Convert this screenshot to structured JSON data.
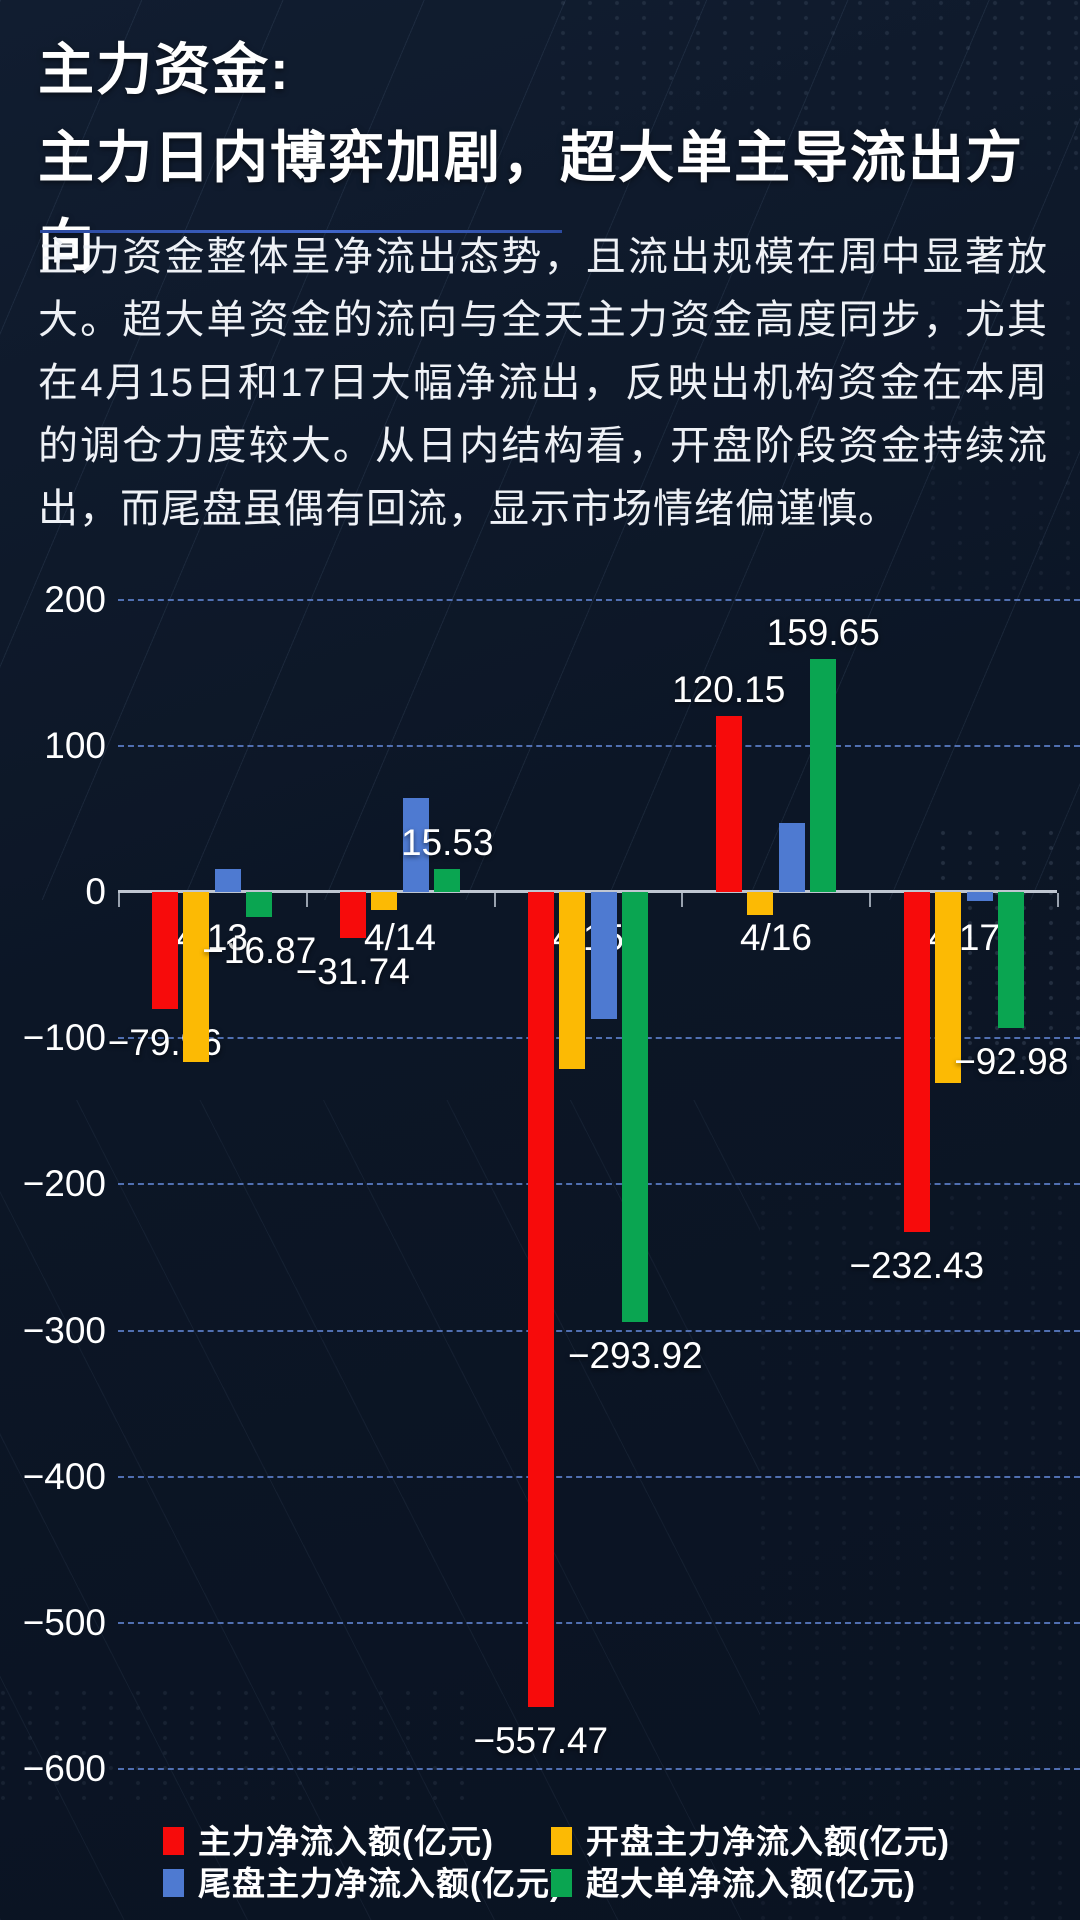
{
  "page": {
    "title": "主力资金:\n主力日内博弈加剧，超大单主导流出方向",
    "summary": "主力资金整体呈净流出态势，且流出规模在周中显著放大。超大单资金的流向与全天主力资金高度同步，尤其在4月15日和17日大幅净流出，反映出机构资金在本周的调仓力度较大。从日内结构看，开盘阶段资金持续流出，而尾盘虽偶有回流，显示市场情绪偏谨慎。"
  },
  "colors": {
    "background": "#0c1626",
    "text": "#ffffff",
    "grid": "#6286d4",
    "axis": "#bfc6d1",
    "title_underline": "#3a5fc0",
    "series_red": "#f70b0b",
    "series_yellow": "#fcba04",
    "series_blue": "#4e7ad1",
    "series_green": "#0aa551"
  },
  "chart_data": {
    "type": "bar",
    "title": "",
    "xlabel": "",
    "ylabel": "",
    "unit": "亿元",
    "categories": [
      "4/13",
      "4/14",
      "4/15",
      "4/16",
      "4/17"
    ],
    "y_axis": {
      "min": -600,
      "max": 200,
      "tick_step": 100,
      "ticks": [
        {
          "value": 200,
          "label": "200"
        },
        {
          "value": 100,
          "label": "100"
        },
        {
          "value": 0,
          "label": "0"
        },
        {
          "value": -100,
          "label": "−100"
        },
        {
          "value": -200,
          "label": "−200"
        },
        {
          "value": -300,
          "label": "−300"
        },
        {
          "value": -400,
          "label": "−400"
        },
        {
          "value": -500,
          "label": "−500"
        },
        {
          "value": -600,
          "label": "−600"
        }
      ]
    },
    "grid": "horizontal-dashed",
    "legend_position": "bottom",
    "series": [
      {
        "name": "主力净流入额(亿元)",
        "color": "#f70b0b",
        "values": [
          -79.96,
          -31.74,
          -557.47,
          120.15,
          -232.43
        ],
        "point_labels": [
          "−79.96",
          "−31.74",
          "−557.47",
          "120.15",
          "−232.43"
        ]
      },
      {
        "name": "开盘主力净流入额(亿元)",
        "color": "#fcba04",
        "values": [
          -116,
          -12,
          -121,
          -16,
          -131
        ],
        "point_labels": [
          null,
          null,
          null,
          null,
          null
        ]
      },
      {
        "name": "尾盘主力净流入额(亿元)",
        "color": "#4e7ad1",
        "values": [
          15.5,
          64,
          -87,
          47,
          -6
        ],
        "point_labels": [
          null,
          null,
          null,
          null,
          null
        ]
      },
      {
        "name": "超大单净流入额(亿元)",
        "color": "#0aa551",
        "values": [
          -16.87,
          15.53,
          -293.92,
          159.65,
          -92.98
        ],
        "point_labels": [
          "−16.87",
          "15.53",
          "−293.92",
          "159.65",
          "−92.98"
        ]
      }
    ]
  }
}
